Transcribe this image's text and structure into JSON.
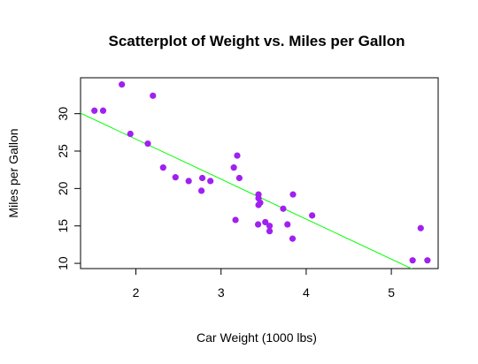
{
  "chart_data": {
    "type": "scatter",
    "title": "Scatterplot of Weight vs. Miles per Gallon",
    "xlabel": "Car Weight (1000 lbs)",
    "ylabel": "Miles per Gallon",
    "xlim": [
      1.35,
      5.55
    ],
    "ylim": [
      9.3,
      34.8
    ],
    "xticks": [
      2,
      3,
      4,
      5
    ],
    "yticks": [
      10,
      15,
      20,
      25,
      30
    ],
    "grid": false,
    "legend": "none",
    "point_color": "#a020f0",
    "line_color": "#00ff00",
    "regression_line": {
      "intercept": 37.285,
      "slope": -5.344
    },
    "points": [
      {
        "x": 2.62,
        "y": 21.0
      },
      {
        "x": 2.875,
        "y": 21.0
      },
      {
        "x": 2.32,
        "y": 22.8
      },
      {
        "x": 3.215,
        "y": 21.4
      },
      {
        "x": 3.44,
        "y": 18.7
      },
      {
        "x": 3.46,
        "y": 18.1
      },
      {
        "x": 3.57,
        "y": 14.3
      },
      {
        "x": 3.19,
        "y": 24.4
      },
      {
        "x": 3.15,
        "y": 22.8
      },
      {
        "x": 3.44,
        "y": 19.2
      },
      {
        "x": 3.44,
        "y": 17.8
      },
      {
        "x": 4.07,
        "y": 16.4
      },
      {
        "x": 3.73,
        "y": 17.3
      },
      {
        "x": 3.78,
        "y": 15.2
      },
      {
        "x": 5.25,
        "y": 10.4
      },
      {
        "x": 5.424,
        "y": 10.4
      },
      {
        "x": 5.345,
        "y": 14.7
      },
      {
        "x": 2.2,
        "y": 32.4
      },
      {
        "x": 1.615,
        "y": 30.4
      },
      {
        "x": 1.835,
        "y": 33.9
      },
      {
        "x": 2.465,
        "y": 21.5
      },
      {
        "x": 3.52,
        "y": 15.5
      },
      {
        "x": 3.435,
        "y": 15.2
      },
      {
        "x": 3.84,
        "y": 13.3
      },
      {
        "x": 3.845,
        "y": 19.2
      },
      {
        "x": 1.935,
        "y": 27.3
      },
      {
        "x": 2.14,
        "y": 26.0
      },
      {
        "x": 1.513,
        "y": 30.4
      },
      {
        "x": 3.17,
        "y": 15.8
      },
      {
        "x": 2.77,
        "y": 19.7
      },
      {
        "x": 3.57,
        "y": 15.0
      },
      {
        "x": 2.78,
        "y": 21.4
      }
    ]
  }
}
